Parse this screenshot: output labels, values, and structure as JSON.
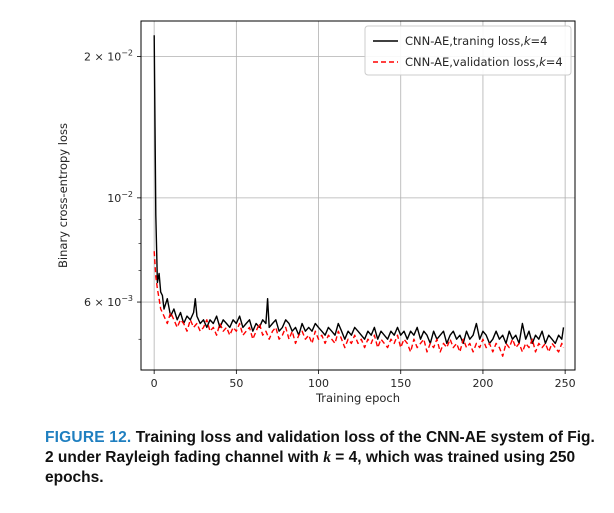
{
  "chart_data": {
    "type": "line",
    "xlabel": "Training epoch",
    "ylabel": "Binary cross-entropy loss",
    "xlim": [
      -8,
      256
    ],
    "ylim": [
      0.0043,
      0.0238
    ],
    "yscale": "log",
    "xticks": [
      0,
      50,
      100,
      150,
      200,
      250
    ],
    "yticks": [
      {
        "value": 0.02,
        "mantissa": "2",
        "exponent": "−2"
      },
      {
        "value": 0.01,
        "mantissa": "",
        "exponent": "−2"
      },
      {
        "value": 0.006,
        "mantissa": "6",
        "exponent": "−3"
      }
    ],
    "grid": true,
    "legend_position": "top-right",
    "series": [
      {
        "name": "CNN-AE,traning loss,k=4",
        "legend_prefix": "CNN-AE,traning loss,",
        "legend_k": "k",
        "legend_suffix": "=4",
        "color": "#000000",
        "linestyle": "solid",
        "x": [
          0,
          1,
          2,
          3,
          4,
          5,
          6,
          8,
          10,
          12,
          14,
          16,
          18,
          20,
          22,
          24,
          25,
          26,
          28,
          30,
          32,
          34,
          36,
          38,
          40,
          42,
          44,
          46,
          48,
          50,
          52,
          54,
          56,
          58,
          60,
          62,
          64,
          66,
          68,
          69,
          70,
          72,
          74,
          76,
          78,
          80,
          82,
          84,
          86,
          88,
          90,
          92,
          94,
          96,
          98,
          100,
          102,
          104,
          106,
          108,
          110,
          112,
          114,
          116,
          118,
          120,
          122,
          124,
          126,
          128,
          130,
          132,
          134,
          136,
          138,
          140,
          142,
          144,
          146,
          148,
          150,
          152,
          154,
          156,
          158,
          160,
          162,
          164,
          166,
          168,
          170,
          172,
          174,
          176,
          178,
          180,
          182,
          184,
          186,
          188,
          190,
          192,
          194,
          196,
          198,
          200,
          202,
          204,
          206,
          208,
          210,
          212,
          214,
          216,
          218,
          220,
          222,
          224,
          226,
          228,
          230,
          232,
          234,
          236,
          238,
          240,
          242,
          244,
          246,
          248,
          249
        ],
        "y": [
          0.0222,
          0.0092,
          0.0066,
          0.0069,
          0.0063,
          0.0062,
          0.0058,
          0.0061,
          0.0056,
          0.0058,
          0.0055,
          0.0057,
          0.0054,
          0.0056,
          0.0055,
          0.0057,
          0.0061,
          0.0056,
          0.0054,
          0.0055,
          0.0053,
          0.0055,
          0.0054,
          0.0056,
          0.0053,
          0.0055,
          0.0054,
          0.0053,
          0.0055,
          0.0054,
          0.0056,
          0.0053,
          0.0054,
          0.0055,
          0.0052,
          0.0054,
          0.0053,
          0.0055,
          0.0054,
          0.0061,
          0.0053,
          0.0054,
          0.0055,
          0.0052,
          0.0053,
          0.0055,
          0.0054,
          0.0052,
          0.0053,
          0.0051,
          0.0054,
          0.0052,
          0.0053,
          0.0052,
          0.0054,
          0.0053,
          0.0052,
          0.0051,
          0.0053,
          0.0052,
          0.0051,
          0.0054,
          0.0052,
          0.005,
          0.0052,
          0.0051,
          0.0053,
          0.0052,
          0.0051,
          0.005,
          0.0052,
          0.0051,
          0.0053,
          0.005,
          0.0052,
          0.0051,
          0.005,
          0.0052,
          0.0051,
          0.0053,
          0.0051,
          0.0052,
          0.005,
          0.0052,
          0.0051,
          0.0053,
          0.005,
          0.0052,
          0.0051,
          0.0049,
          0.0052,
          0.005,
          0.0051,
          0.0052,
          0.0049,
          0.0051,
          0.0052,
          0.005,
          0.0051,
          0.0049,
          0.0052,
          0.005,
          0.0051,
          0.0054,
          0.005,
          0.0052,
          0.0051,
          0.0049,
          0.005,
          0.0052,
          0.005,
          0.0051,
          0.0049,
          0.0052,
          0.005,
          0.0051,
          0.0049,
          0.0054,
          0.005,
          0.0052,
          0.0049,
          0.0051,
          0.005,
          0.0052,
          0.0049,
          0.0051,
          0.005,
          0.0049,
          0.0051,
          0.005,
          0.0053
        ]
      },
      {
        "name": "CNN-AE,validation loss,k=4",
        "legend_prefix": "CNN-AE,validation loss,",
        "legend_k": "k",
        "legend_suffix": "=4",
        "color": "#ff0000",
        "linestyle": "dashed",
        "x": [
          0,
          1,
          2,
          3,
          4,
          5,
          6,
          8,
          10,
          12,
          14,
          16,
          18,
          20,
          22,
          24,
          26,
          28,
          30,
          32,
          34,
          36,
          38,
          40,
          42,
          44,
          46,
          48,
          50,
          52,
          54,
          56,
          58,
          60,
          62,
          64,
          66,
          68,
          70,
          72,
          74,
          76,
          78,
          80,
          82,
          84,
          86,
          88,
          90,
          92,
          94,
          96,
          98,
          100,
          102,
          104,
          106,
          108,
          110,
          112,
          114,
          116,
          118,
          120,
          122,
          124,
          126,
          128,
          130,
          132,
          134,
          136,
          138,
          140,
          142,
          144,
          146,
          148,
          150,
          152,
          154,
          156,
          158,
          160,
          162,
          164,
          166,
          168,
          170,
          172,
          174,
          176,
          178,
          180,
          182,
          184,
          186,
          188,
          190,
          192,
          194,
          196,
          198,
          200,
          202,
          204,
          206,
          208,
          210,
          212,
          214,
          216,
          218,
          220,
          222,
          224,
          226,
          228,
          230,
          232,
          234,
          236,
          238,
          240,
          242,
          244,
          246,
          248,
          249
        ],
        "y": [
          0.0077,
          0.0068,
          0.0064,
          0.0061,
          0.0058,
          0.0057,
          0.0056,
          0.0054,
          0.0057,
          0.0055,
          0.0053,
          0.0055,
          0.0054,
          0.0052,
          0.0055,
          0.0053,
          0.0054,
          0.0052,
          0.0053,
          0.0055,
          0.0052,
          0.0053,
          0.0051,
          0.0054,
          0.0052,
          0.0053,
          0.0051,
          0.0053,
          0.0052,
          0.0054,
          0.0051,
          0.0052,
          0.0053,
          0.005,
          0.0052,
          0.0054,
          0.0051,
          0.0052,
          0.005,
          0.0052,
          0.0053,
          0.005,
          0.0051,
          0.0053,
          0.005,
          0.0052,
          0.0049,
          0.0051,
          0.0052,
          0.005,
          0.0051,
          0.0049,
          0.0052,
          0.005,
          0.0051,
          0.0049,
          0.0051,
          0.005,
          0.0049,
          0.0052,
          0.005,
          0.0048,
          0.005,
          0.0049,
          0.0051,
          0.0049,
          0.005,
          0.0048,
          0.005,
          0.0049,
          0.0051,
          0.0048,
          0.005,
          0.0049,
          0.0048,
          0.005,
          0.0049,
          0.0051,
          0.0048,
          0.005,
          0.0049,
          0.0047,
          0.005,
          0.0048,
          0.0049,
          0.005,
          0.0047,
          0.0049,
          0.0048,
          0.005,
          0.0047,
          0.0049,
          0.0048,
          0.005,
          0.0048,
          0.0049,
          0.0047,
          0.005,
          0.0048,
          0.0049,
          0.0047,
          0.0049,
          0.0048,
          0.005,
          0.0048,
          0.0049,
          0.0047,
          0.0049,
          0.0048,
          0.0046,
          0.0049,
          0.0048,
          0.005,
          0.0048,
          0.0049,
          0.0047,
          0.0049,
          0.0048,
          0.005,
          0.0047,
          0.0049,
          0.0048,
          0.0049,
          0.0047,
          0.0049,
          0.0048,
          0.0047,
          0.0049,
          0.0048
        ]
      }
    ]
  },
  "caption": {
    "label": "FIGURE 12.",
    "text_before": "Training loss and validation loss of the CNN-AE system of Fig. 2 under Rayleigh fading channel with",
    "k": "k",
    "text_after": "= 4, which was trained using 250 epochs."
  }
}
